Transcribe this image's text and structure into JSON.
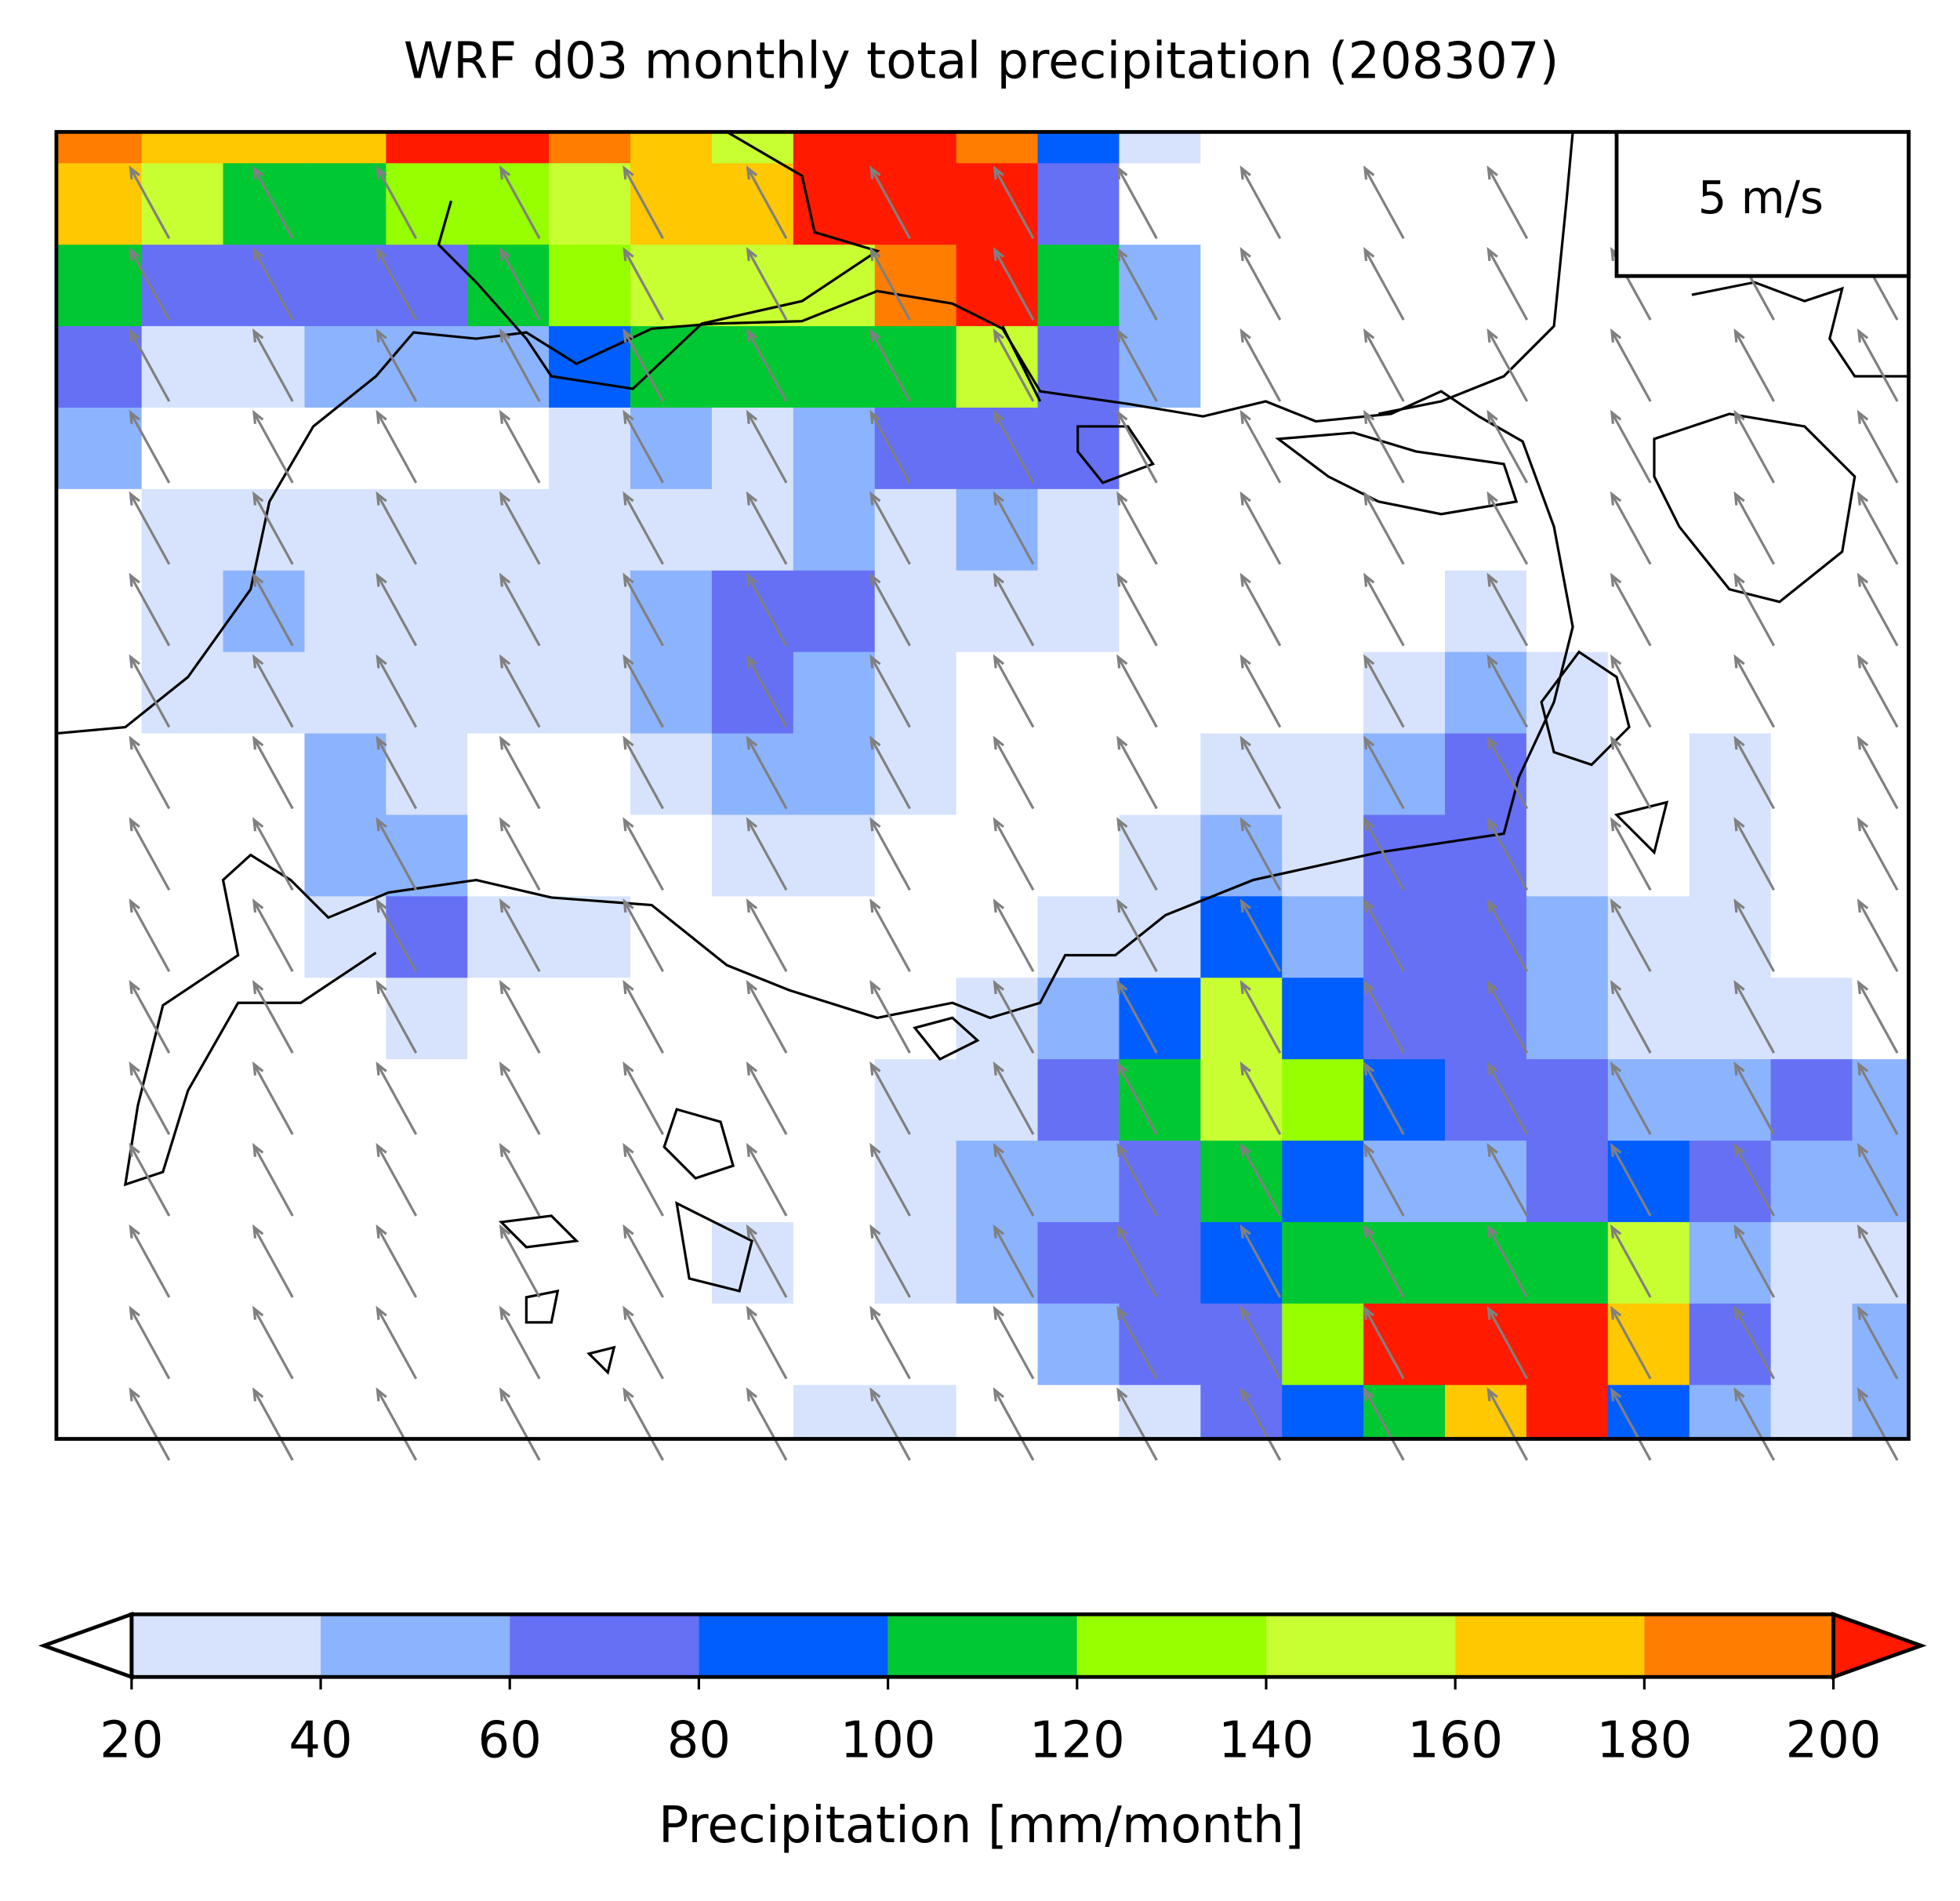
{
  "chart_data": {
    "type": "heatmap",
    "title": "WRF d03 monthly total precipitation (208307)",
    "colorbar_label": "Precipitation [mm/month]",
    "levels": [
      20,
      40,
      60,
      80,
      100,
      120,
      140,
      160,
      180,
      200
    ],
    "colors": [
      "#d7e3fc",
      "#8cb3fe",
      "#6670f5",
      "#005efe",
      "#00c832",
      "#96ff00",
      "#c8ff32",
      "#ffc800",
      "#ff7d00"
    ],
    "under_color": "#ffffff",
    "over_color": "#ff1a00",
    "z": [
      [
        190,
        170,
        170,
        170,
        210,
        210,
        190,
        170,
        150,
        210,
        210,
        190,
        90,
        30,
        10,
        10,
        10,
        10,
        10,
        10,
        10,
        10,
        10
      ],
      [
        170,
        150,
        110,
        110,
        130,
        130,
        150,
        170,
        170,
        210,
        210,
        210,
        70,
        10,
        10,
        10,
        10,
        10,
        10,
        10,
        10,
        10,
        10
      ],
      [
        110,
        70,
        70,
        70,
        70,
        110,
        130,
        150,
        150,
        150,
        190,
        210,
        110,
        50,
        10,
        10,
        10,
        10,
        10,
        10,
        10,
        10,
        10
      ],
      [
        70,
        30,
        30,
        50,
        50,
        50,
        90,
        110,
        110,
        110,
        110,
        150,
        70,
        50,
        10,
        10,
        10,
        10,
        10,
        10,
        10,
        10,
        10
      ],
      [
        50,
        10,
        10,
        10,
        10,
        10,
        30,
        50,
        30,
        50,
        70,
        70,
        70,
        10,
        10,
        10,
        10,
        10,
        10,
        10,
        10,
        10,
        10
      ],
      [
        10,
        30,
        30,
        30,
        30,
        30,
        30,
        30,
        30,
        50,
        30,
        50,
        30,
        10,
        10,
        10,
        10,
        10,
        10,
        10,
        10,
        10,
        10
      ],
      [
        10,
        30,
        50,
        30,
        30,
        30,
        30,
        50,
        70,
        70,
        30,
        30,
        30,
        10,
        10,
        10,
        10,
        30,
        10,
        10,
        10,
        10,
        10
      ],
      [
        10,
        30,
        30,
        30,
        30,
        30,
        30,
        50,
        70,
        50,
        30,
        10,
        10,
        10,
        10,
        10,
        30,
        50,
        30,
        10,
        10,
        10,
        10
      ],
      [
        10,
        10,
        10,
        50,
        30,
        10,
        10,
        30,
        50,
        50,
        30,
        10,
        10,
        10,
        30,
        30,
        50,
        70,
        30,
        10,
        30,
        10,
        10
      ],
      [
        10,
        10,
        10,
        50,
        50,
        10,
        10,
        10,
        30,
        30,
        10,
        10,
        10,
        30,
        50,
        30,
        70,
        70,
        30,
        10,
        30,
        10,
        10
      ],
      [
        10,
        10,
        10,
        30,
        70,
        30,
        30,
        10,
        10,
        10,
        10,
        10,
        30,
        30,
        90,
        50,
        70,
        70,
        50,
        30,
        30,
        10,
        10
      ],
      [
        10,
        10,
        10,
        10,
        30,
        10,
        10,
        10,
        10,
        10,
        10,
        30,
        50,
        90,
        150,
        90,
        70,
        70,
        50,
        30,
        30,
        30,
        10
      ],
      [
        10,
        10,
        10,
        10,
        10,
        10,
        10,
        10,
        10,
        10,
        30,
        30,
        70,
        110,
        150,
        130,
        90,
        70,
        70,
        50,
        50,
        70,
        50
      ],
      [
        10,
        10,
        10,
        10,
        10,
        10,
        10,
        10,
        10,
        10,
        30,
        50,
        50,
        70,
        110,
        90,
        50,
        50,
        70,
        90,
        70,
        50,
        50
      ],
      [
        10,
        10,
        10,
        10,
        10,
        10,
        10,
        10,
        30,
        10,
        30,
        50,
        70,
        70,
        90,
        110,
        110,
        110,
        110,
        150,
        50,
        30,
        30
      ],
      [
        10,
        10,
        10,
        10,
        10,
        10,
        10,
        10,
        10,
        10,
        10,
        10,
        50,
        70,
        70,
        130,
        210,
        210,
        210,
        170,
        70,
        30,
        50
      ],
      [
        10,
        10,
        10,
        10,
        10,
        10,
        10,
        10,
        10,
        30,
        30,
        10,
        10,
        30,
        70,
        90,
        110,
        170,
        210,
        90,
        50,
        30,
        50
      ]
    ],
    "quiver": {
      "u": -2.2,
      "v": 4.0,
      "color": "#808080",
      "key": {
        "value": 5,
        "label": "5 m/s"
      }
    }
  }
}
